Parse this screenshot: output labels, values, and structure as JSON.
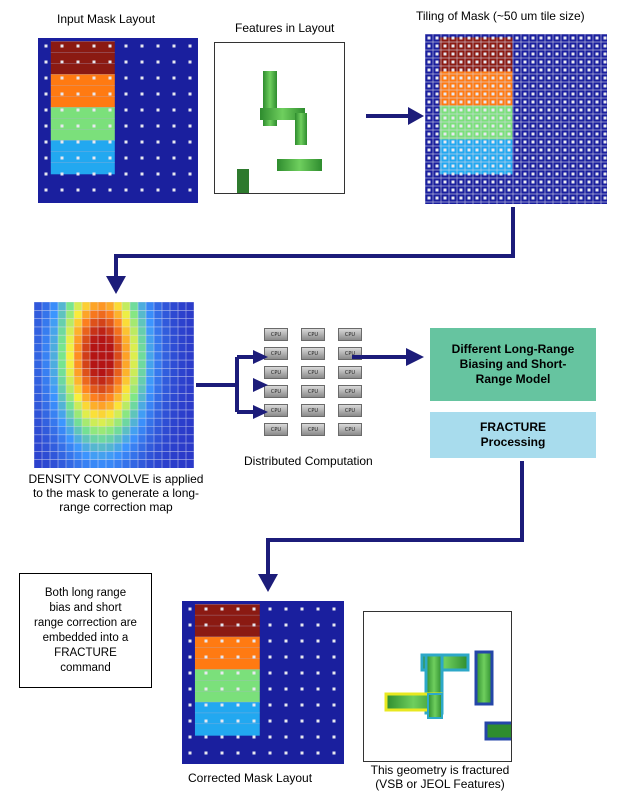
{
  "labels": {
    "input_mask": "Input Mask Layout",
    "features": "Features in Layout",
    "tiling": "Tiling of Mask (~50 um tile size)",
    "density_line1": "DENSITY CONVOLVE is applied",
    "density_line2": "to the mask to generate a long-",
    "density_line3": "range correction map",
    "distributed": "Distributed Computation",
    "corrected": "Corrected Mask Layout",
    "fractured_line1": "This geometry is fractured",
    "fractured_line2": "(VSB or JEOL Features)"
  },
  "boxes": {
    "model_line1": "Different Long-Range",
    "model_line2": "Biasing and Short-",
    "model_line3": "Range Model",
    "fracture_line1": "FRACTURE",
    "fracture_line2": "Processing"
  },
  "note": {
    "line1": "Both long range",
    "line2": "bias and short",
    "line3": "range correction are",
    "line4": "embedded into a",
    "line5": "FRACTURE",
    "line6": "command"
  },
  "cpu_label": "CPU",
  "colors": {
    "arrow": "#1c1c7a",
    "mask_blue": "#1a1f9e",
    "band_red": "#8b1a12",
    "band_orange": "#ff7a12",
    "band_green": "#7be07b",
    "band_cyan": "#22a8f0",
    "model_box": "#66c4a0",
    "fracture_box": "#a8dced",
    "feature_green": "#3aa83a"
  }
}
